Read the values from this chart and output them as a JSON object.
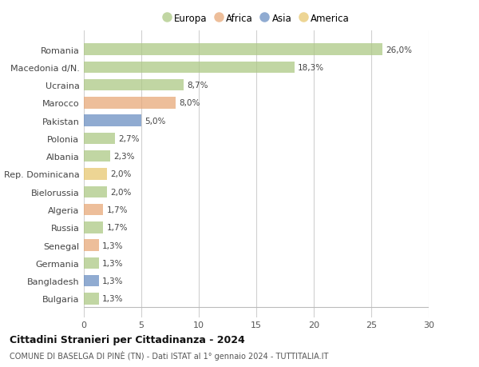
{
  "countries": [
    "Romania",
    "Macedonia d/N.",
    "Ucraina",
    "Marocco",
    "Pakistan",
    "Polonia",
    "Albania",
    "Rep. Dominicana",
    "Bielorussia",
    "Algeria",
    "Russia",
    "Senegal",
    "Germania",
    "Bangladesh",
    "Bulgaria"
  ],
  "values": [
    26.0,
    18.3,
    8.7,
    8.0,
    5.0,
    2.7,
    2.3,
    2.0,
    2.0,
    1.7,
    1.7,
    1.3,
    1.3,
    1.3,
    1.3
  ],
  "labels": [
    "26,0%",
    "18,3%",
    "8,7%",
    "8,0%",
    "5,0%",
    "2,7%",
    "2,3%",
    "2,0%",
    "2,0%",
    "1,7%",
    "1,7%",
    "1,3%",
    "1,3%",
    "1,3%",
    "1,3%"
  ],
  "continent": [
    "Europa",
    "Europa",
    "Europa",
    "Africa",
    "Asia",
    "Europa",
    "Europa",
    "America",
    "Europa",
    "Africa",
    "Europa",
    "Africa",
    "Europa",
    "Asia",
    "Europa"
  ],
  "colors": {
    "Europa": "#adc985",
    "Africa": "#e8a878",
    "Asia": "#6b8fc2",
    "America": "#e8c870"
  },
  "xlim": [
    0,
    30
  ],
  "xticks": [
    0,
    5,
    10,
    15,
    20,
    25,
    30
  ],
  "title": "Cittadini Stranieri per Cittadinanza - 2024",
  "subtitle": "COMUNE DI BASELGA DI PINÈ (TN) - Dati ISTAT al 1° gennaio 2024 - TUTTITALIA.IT",
  "background_color": "#ffffff",
  "grid_color": "#d0d0d0",
  "legend_order": [
    "Europa",
    "Africa",
    "Asia",
    "America"
  ],
  "bar_alpha": 0.75
}
